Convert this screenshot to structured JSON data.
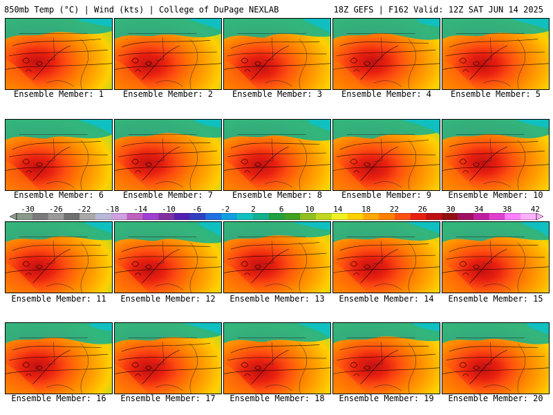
{
  "header": {
    "left": "850mb Temp (°C) | Wind (kts) | College of DuPage NEXLAB",
    "right": "18Z GEFS | F162 Valid: 12Z SAT JUN 14 2025"
  },
  "panels": [
    {
      "label": "Ensemble Member: 1"
    },
    {
      "label": "Ensemble Member: 2"
    },
    {
      "label": "Ensemble Member: 3"
    },
    {
      "label": "Ensemble Member: 4"
    },
    {
      "label": "Ensemble Member: 5"
    },
    {
      "label": "Ensemble Member: 6"
    },
    {
      "label": "Ensemble Member: 7"
    },
    {
      "label": "Ensemble Member: 8"
    },
    {
      "label": "Ensemble Member: 9"
    },
    {
      "label": "Ensemble Member: 10"
    },
    {
      "label": "Ensemble Member: 11"
    },
    {
      "label": "Ensemble Member: 12"
    },
    {
      "label": "Ensemble Member: 13"
    },
    {
      "label": "Ensemble Member: 14"
    },
    {
      "label": "Ensemble Member: 15"
    },
    {
      "label": "Ensemble Member: 16"
    },
    {
      "label": "Ensemble Member: 17"
    },
    {
      "label": "Ensemble Member: 18"
    },
    {
      "label": "Ensemble Member: 19"
    },
    {
      "label": "Ensemble Member: 20"
    }
  ],
  "colorbar": {
    "labels": [
      "-30",
      "-26",
      "-22",
      "-18",
      "-14",
      "-10",
      "-6",
      "-2",
      "2",
      "6",
      "10",
      "14",
      "18",
      "22",
      "26",
      "30",
      "34",
      "38",
      "42"
    ],
    "colors": [
      "#8a9a8a",
      "#7a7a7a",
      "#9a9a9a",
      "#707070",
      "#a8a8a8",
      "#b8b8d8",
      "#d0a0e0",
      "#c060c0",
      "#a040d0",
      "#8030a0",
      "#5020b0",
      "#3040c0",
      "#2070e0",
      "#10a0e0",
      "#10c0c0",
      "#10b090",
      "#20a040",
      "#40a020",
      "#90c020",
      "#c0d820",
      "#f0f020",
      "#ffd000",
      "#ffa800",
      "#ff8000",
      "#ff5010",
      "#e82010",
      "#c01010",
      "#901010",
      "#a01060",
      "#c020a0",
      "#e040d0",
      "#ff80ff",
      "#ffb0ff"
    ]
  }
}
